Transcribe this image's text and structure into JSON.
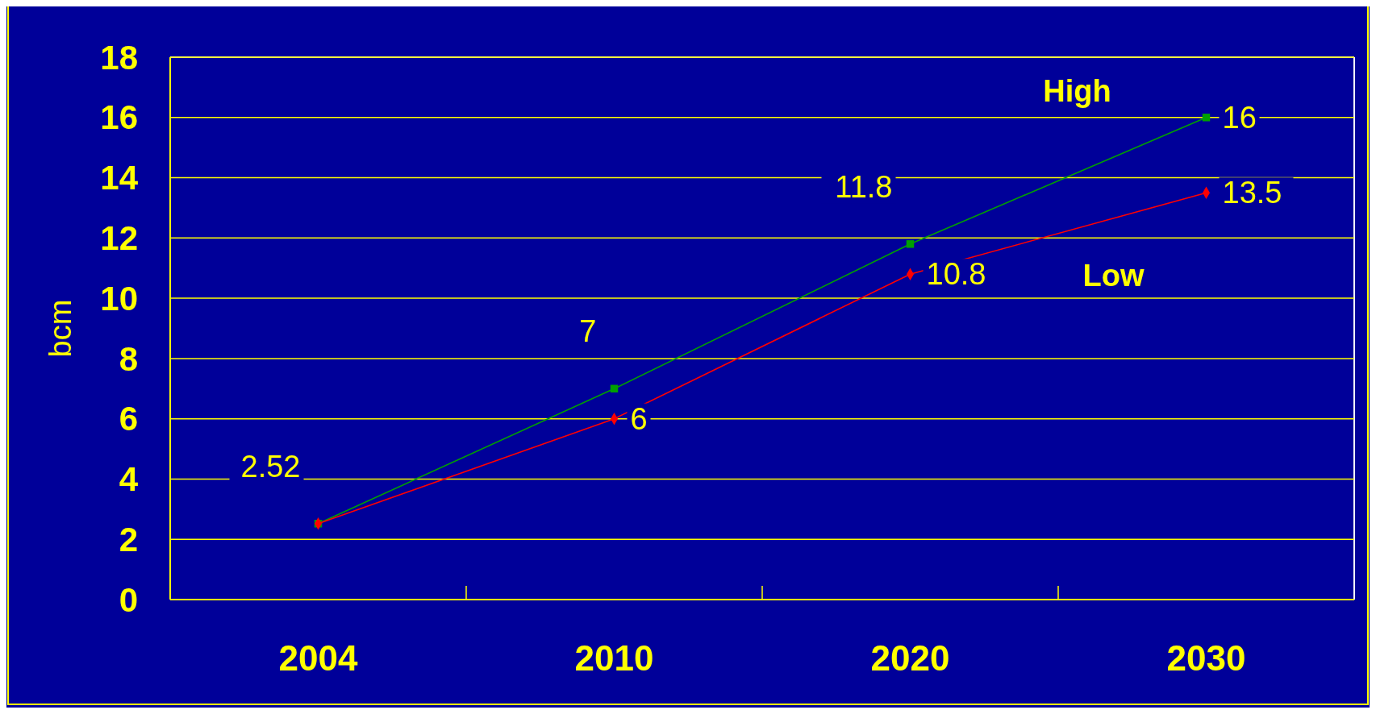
{
  "chart_data": {
    "type": "line",
    "ylabel": "bcm",
    "categories": [
      "2004",
      "2010",
      "2020",
      "2030"
    ],
    "ylim": [
      0,
      18
    ],
    "yticks": [
      0,
      2,
      4,
      6,
      8,
      10,
      12,
      14,
      16,
      18
    ],
    "grid": "y",
    "series": [
      {
        "name": "High",
        "color": "#00a000",
        "marker": "square",
        "values": [
          2.52,
          7,
          11.8,
          16
        ],
        "value_labels": [
          "2.52",
          "7",
          "11.8",
          "16"
        ]
      },
      {
        "name": "Low",
        "color": "#ff0000",
        "marker": "diamond",
        "values": [
          2.52,
          6,
          10.8,
          13.5
        ],
        "value_labels": [
          null,
          "6",
          "10.8",
          "13.5"
        ]
      }
    ]
  }
}
